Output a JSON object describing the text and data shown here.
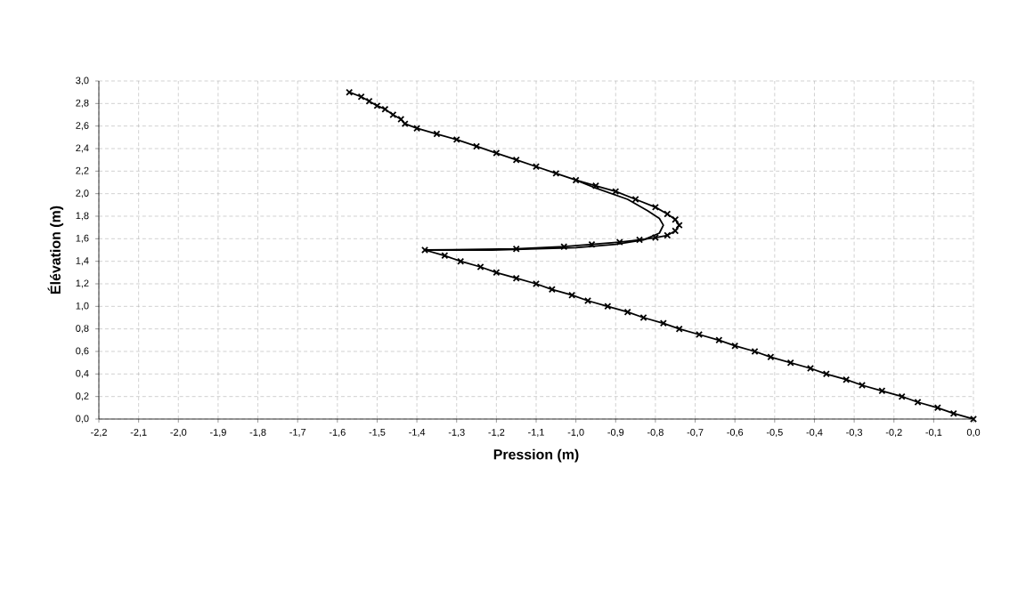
{
  "chart_data": {
    "type": "line",
    "xlabel": "Pression (m)",
    "ylabel": "Élévation (m)",
    "xlim": [
      -2.2,
      0.0
    ],
    "ylim": [
      0.0,
      3.0
    ],
    "xticks": [
      {
        "value": -2.2,
        "label": "-2,2"
      },
      {
        "value": -2.1,
        "label": "-2,1"
      },
      {
        "value": -2.0,
        "label": "-2,0"
      },
      {
        "value": -1.9,
        "label": "-1,9"
      },
      {
        "value": -1.8,
        "label": "-1,8"
      },
      {
        "value": -1.7,
        "label": "-1,7"
      },
      {
        "value": -1.6,
        "label": "-1,6"
      },
      {
        "value": -1.5,
        "label": "-1,5"
      },
      {
        "value": -1.4,
        "label": "-1,4"
      },
      {
        "value": -1.3,
        "label": "-1,3"
      },
      {
        "value": -1.2,
        "label": "-1,2"
      },
      {
        "value": -1.1,
        "label": "-1,1"
      },
      {
        "value": -1.0,
        "label": "-1,0"
      },
      {
        "value": -0.9,
        "label": "-0,9"
      },
      {
        "value": -0.8,
        "label": "-0,8"
      },
      {
        "value": -0.7,
        "label": "-0,7"
      },
      {
        "value": -0.6,
        "label": "-0,6"
      },
      {
        "value": -0.5,
        "label": "-0,5"
      },
      {
        "value": -0.4,
        "label": "-0,4"
      },
      {
        "value": -0.3,
        "label": "-0,3"
      },
      {
        "value": -0.2,
        "label": "-0,2"
      },
      {
        "value": -0.1,
        "label": "-0,1"
      },
      {
        "value": 0.0,
        "label": "0,0"
      }
    ],
    "yticks": [
      {
        "value": 0.0,
        "label": "0,0"
      },
      {
        "value": 0.2,
        "label": "0,2"
      },
      {
        "value": 0.4,
        "label": "0,4"
      },
      {
        "value": 0.6,
        "label": "0,6"
      },
      {
        "value": 0.8,
        "label": "0,8"
      },
      {
        "value": 1.0,
        "label": "1,0"
      },
      {
        "value": 1.2,
        "label": "1,2"
      },
      {
        "value": 1.4,
        "label": "1,4"
      },
      {
        "value": 1.6,
        "label": "1,6"
      },
      {
        "value": 1.8,
        "label": "1,8"
      },
      {
        "value": 2.0,
        "label": "2,0"
      },
      {
        "value": 2.2,
        "label": "2,2"
      },
      {
        "value": 2.4,
        "label": "2,4"
      },
      {
        "value": 2.6,
        "label": "2,6"
      },
      {
        "value": 2.8,
        "label": "2,8"
      },
      {
        "value": 3.0,
        "label": "3,0"
      }
    ],
    "grid": true,
    "series": [
      {
        "color": "#000000",
        "marker": "none",
        "x": [
          -1.38,
          -1.21,
          -1.0,
          -0.9,
          -0.83,
          -0.79,
          -0.78,
          -0.79,
          -0.82,
          -0.87,
          -0.95,
          -1.0
        ],
        "values": [
          1.5,
          1.5,
          1.52,
          1.55,
          1.59,
          1.65,
          1.72,
          1.78,
          1.85,
          1.95,
          2.05,
          2.12
        ]
      },
      {
        "color": "#000000",
        "marker": "cross",
        "x": [
          0.0,
          -0.05,
          -0.09,
          -0.14,
          -0.18,
          -0.23,
          -0.28,
          -0.32,
          -0.37,
          -0.41,
          -0.46,
          -0.51,
          -0.55,
          -0.6,
          -0.64,
          -0.69,
          -0.74,
          -0.78,
          -0.83,
          -0.87,
          -0.92,
          -0.97,
          -1.01,
          -1.06,
          -1.1,
          -1.15,
          -1.2,
          -1.24,
          -1.29,
          -1.33,
          -1.38,
          -1.15,
          -1.03,
          -0.96,
          -0.89,
          -0.84,
          -0.8,
          -0.77,
          -0.75,
          -0.74,
          -0.75,
          -0.77,
          -0.8,
          -0.85,
          -0.9,
          -0.95,
          -1.0,
          -1.05,
          -1.1,
          -1.15,
          -1.2,
          -1.25,
          -1.3,
          -1.35,
          -1.4,
          -1.43,
          -1.44,
          -1.46,
          -1.48,
          -1.5,
          -1.52,
          -1.54,
          -1.57
        ],
        "values": [
          0.0,
          0.05,
          0.1,
          0.15,
          0.2,
          0.25,
          0.3,
          0.35,
          0.4,
          0.45,
          0.5,
          0.55,
          0.6,
          0.65,
          0.7,
          0.75,
          0.8,
          0.85,
          0.9,
          0.95,
          1.0,
          1.05,
          1.1,
          1.15,
          1.2,
          1.25,
          1.3,
          1.35,
          1.4,
          1.45,
          1.5,
          1.51,
          1.53,
          1.55,
          1.57,
          1.59,
          1.61,
          1.63,
          1.67,
          1.72,
          1.77,
          1.82,
          1.88,
          1.95,
          2.02,
          2.07,
          2.12,
          2.18,
          2.24,
          2.3,
          2.36,
          2.42,
          2.48,
          2.53,
          2.58,
          2.62,
          2.66,
          2.7,
          2.75,
          2.78,
          2.82,
          2.86,
          2.9
        ]
      }
    ]
  }
}
